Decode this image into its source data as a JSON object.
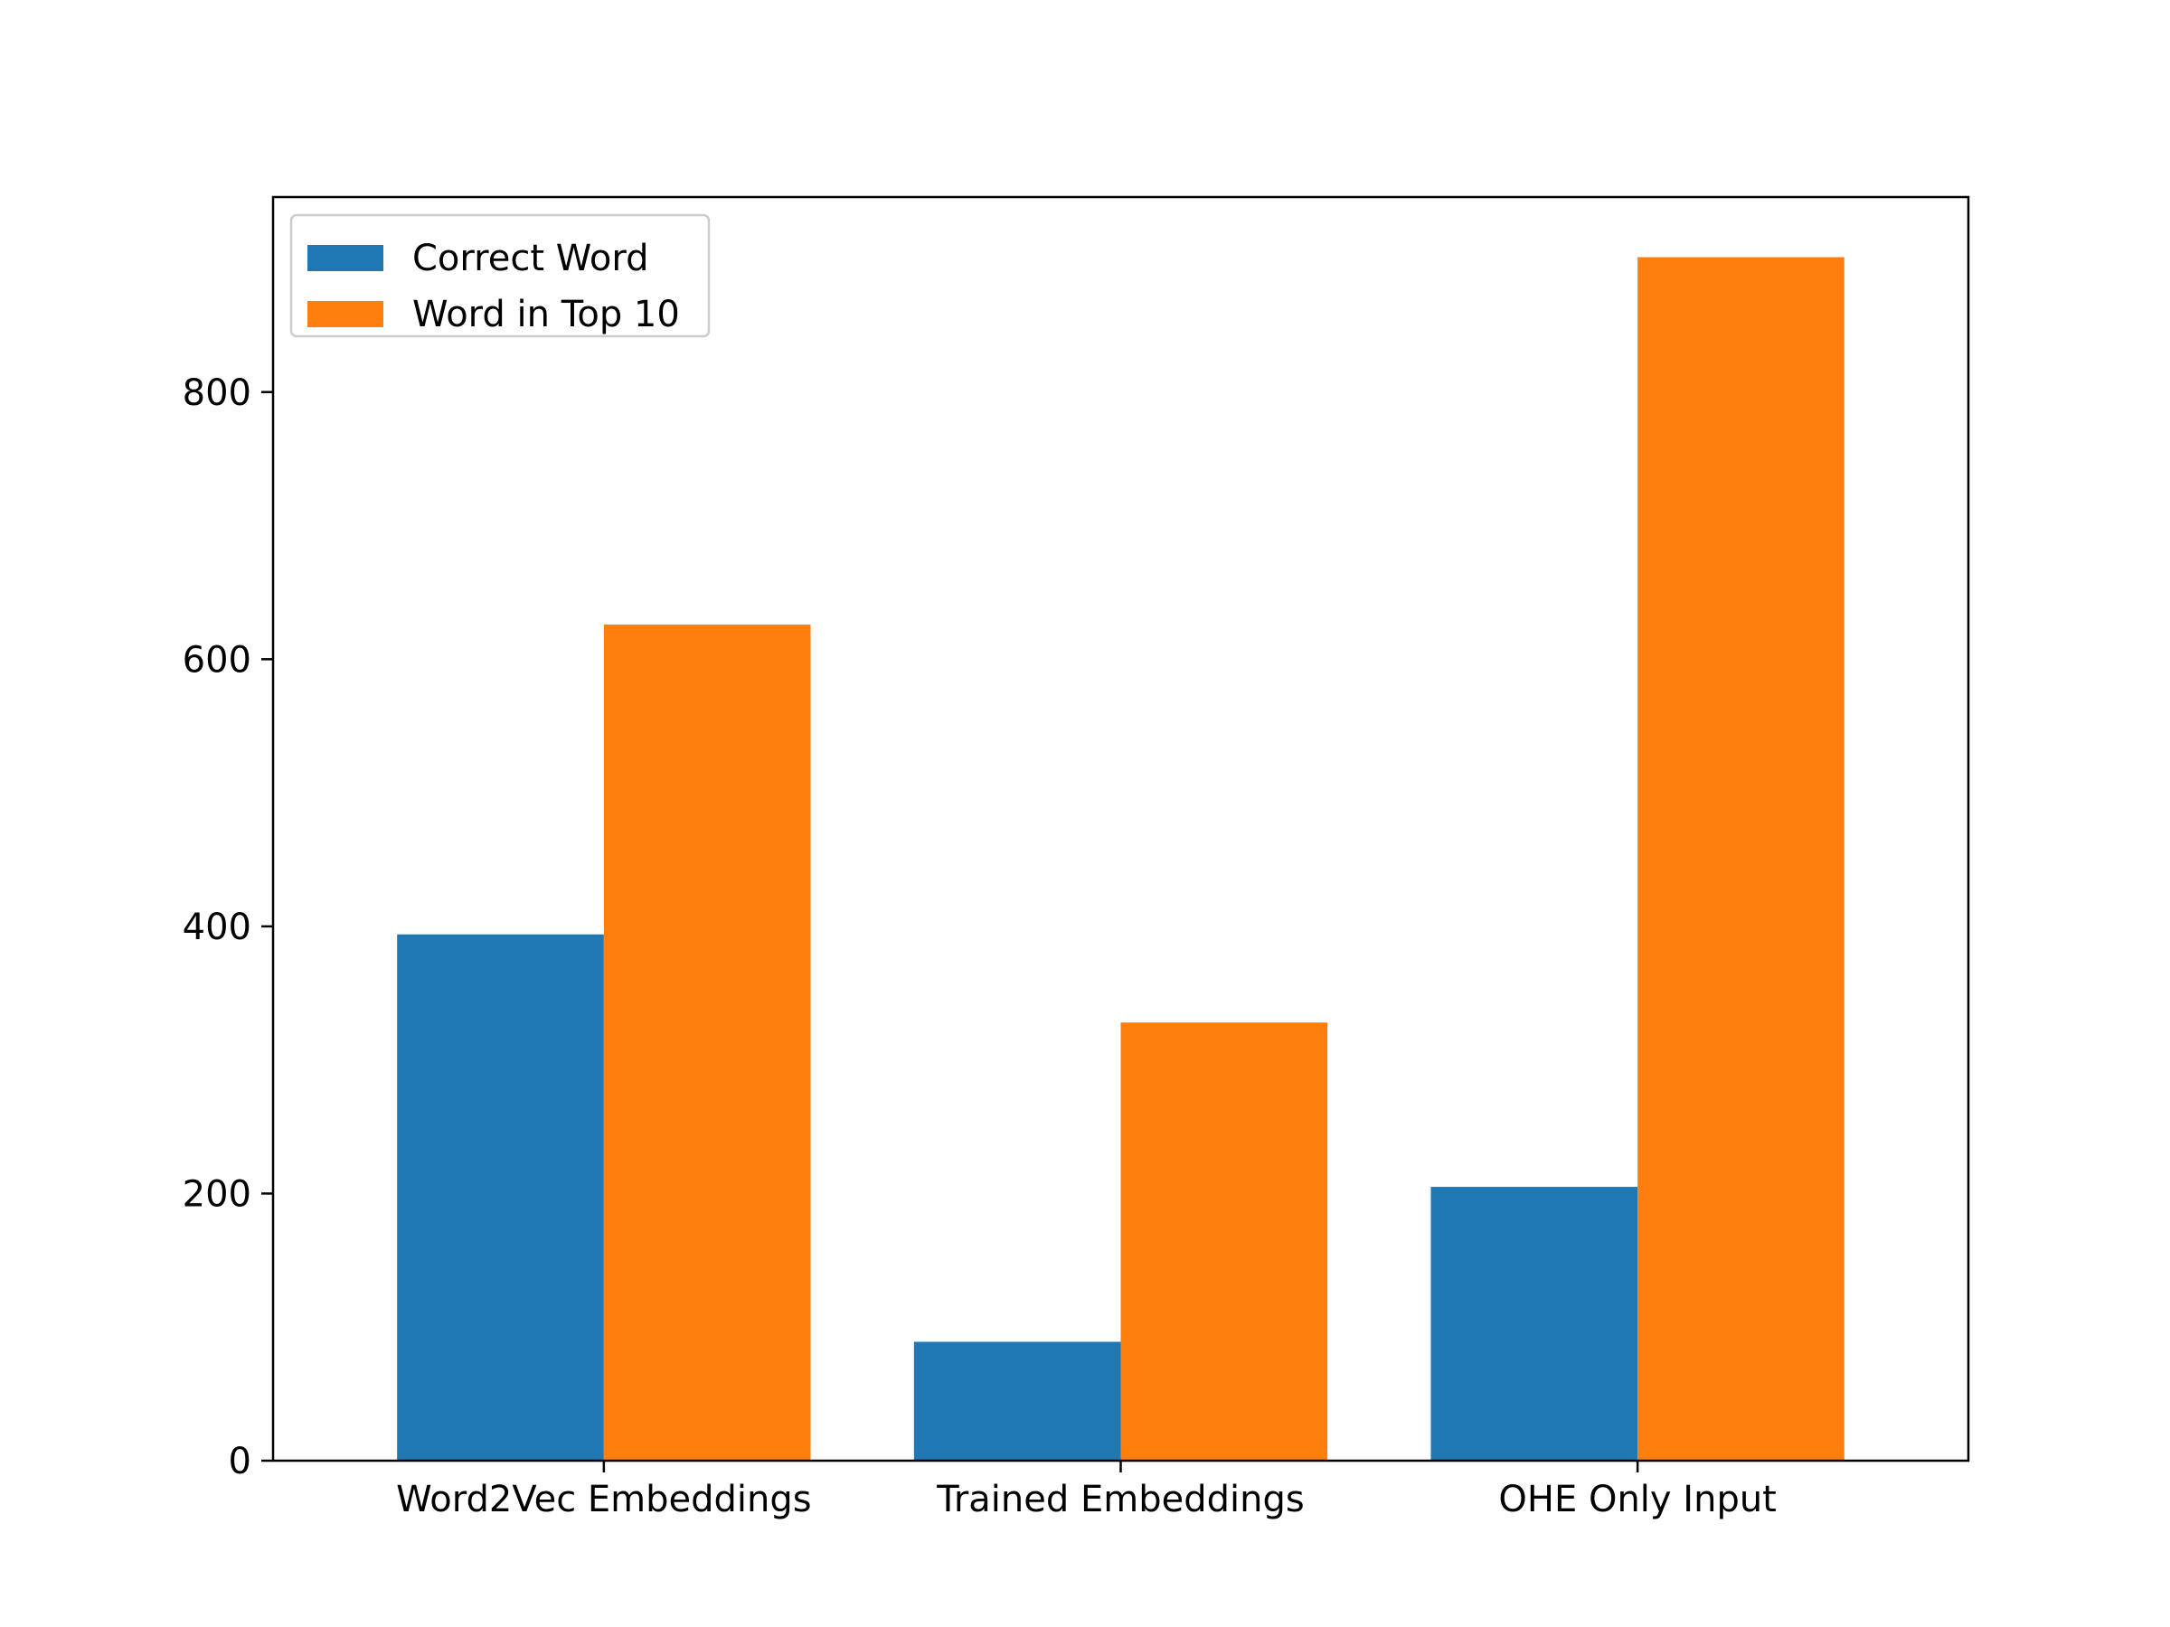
{
  "chart_data": {
    "type": "bar",
    "title": "",
    "xlabel": "",
    "ylabel": "",
    "categories": [
      "Word2Vec Embeddings",
      "Trained Embeddings",
      "OHE Only Input"
    ],
    "series": [
      {
        "name": "Correct Word",
        "color": "#1f77b4",
        "values": [
          394,
          89,
          205
        ]
      },
      {
        "name": "Word in Top 10",
        "color": "#ff7f0e",
        "values": [
          626,
          328,
          901
        ]
      }
    ],
    "ylim": [
      0,
      946
    ],
    "yticks": [
      0,
      200,
      400,
      600,
      800
    ],
    "grid": false,
    "legend": "top-left"
  }
}
